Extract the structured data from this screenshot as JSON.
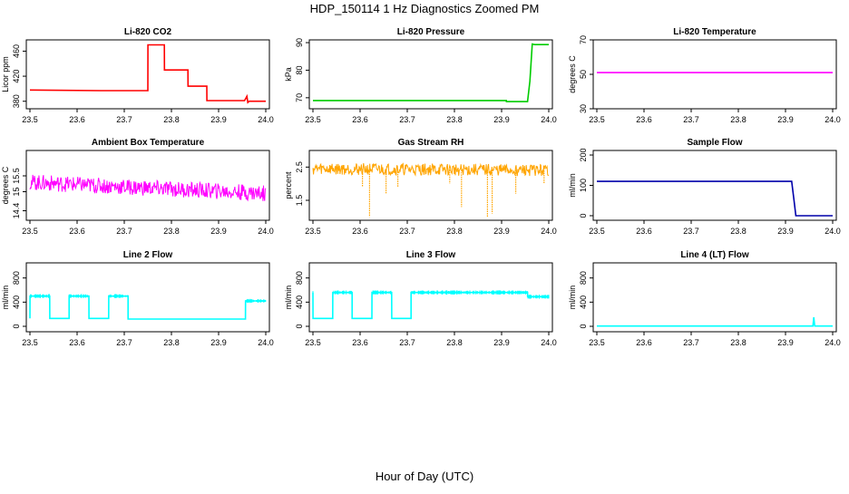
{
  "title": "HDP_150114  1 Hz Diagnostics Zoomed PM",
  "xlabel": "Hour of Day (UTC)",
  "chart_data": [
    {
      "type": "line",
      "title": "Li-820 CO2",
      "ylabel": "Licor ppm",
      "color": "#ff0000",
      "xlim": [
        23.5,
        24.0
      ],
      "ylim": [
        368,
        478
      ],
      "xticks": [
        23.5,
        23.6,
        23.7,
        23.8,
        23.9,
        24.0
      ],
      "yticks": [
        380,
        420,
        460
      ],
      "series": [
        {
          "x": [
            23.5,
            23.65,
            23.75,
            23.7501,
            23.785,
            23.7851,
            23.835,
            23.8351,
            23.875,
            23.8751,
            23.955,
            23.96,
            23.962,
            23.965,
            24.0
          ],
          "y": [
            398,
            397,
            397,
            470,
            470,
            430,
            430,
            404,
            404,
            381,
            381,
            388,
            378,
            380,
            380
          ]
        }
      ]
    },
    {
      "type": "line",
      "title": "Li-820 Pressure",
      "ylabel": "kPa",
      "color": "#00cc00",
      "xlim": [
        23.5,
        24.0
      ],
      "ylim": [
        66,
        91
      ],
      "xticks": [
        23.5,
        23.6,
        23.7,
        23.8,
        23.9,
        24.0
      ],
      "yticks": [
        70,
        80,
        90
      ],
      "series": [
        {
          "x": [
            23.5,
            23.91,
            23.9101,
            23.955,
            23.96,
            23.965,
            23.97,
            24.0
          ],
          "y": [
            69,
            69,
            68.6,
            68.6,
            76,
            89.5,
            89.3,
            89.3
          ]
        }
      ]
    },
    {
      "type": "line",
      "title": "Li-820 Temperature",
      "ylabel": "degrees C",
      "color": "#ff00ff",
      "xlim": [
        23.5,
        24.0
      ],
      "ylim": [
        30,
        70
      ],
      "xticks": [
        23.5,
        23.6,
        23.7,
        23.8,
        23.9,
        24.0
      ],
      "yticks": [
        30,
        50,
        70
      ],
      "series": [
        {
          "x": [
            23.5,
            24.0
          ],
          "y": [
            51,
            51
          ]
        }
      ]
    },
    {
      "type": "line",
      "title": "Ambient Box Temperature",
      "ylabel": "degrees C",
      "color": "#ff00ff",
      "xlim": [
        23.5,
        24.0
      ],
      "ylim": [
        14.1,
        16.3
      ],
      "xticks": [
        23.5,
        23.6,
        23.7,
        23.8,
        23.9,
        24.0
      ],
      "yticks": [
        14.4,
        15.0,
        15.5
      ],
      "noise": {
        "x": [
          23.5,
          23.7,
          23.85,
          24.0
        ],
        "mid": [
          15.3,
          15.15,
          15.05,
          14.95
        ],
        "amp": 0.25
      }
    },
    {
      "type": "line",
      "title": "Gas Stream RH",
      "ylabel": "percent",
      "color": "#ffa500",
      "xlim": [
        23.5,
        24.0
      ],
      "ylim": [
        0.9,
        3.0
      ],
      "xticks": [
        23.5,
        23.6,
        23.7,
        23.8,
        23.9,
        24.0
      ],
      "yticks": [
        1.5,
        2.5
      ],
      "noise": {
        "x": [
          23.5,
          24.0
        ],
        "mid": [
          2.45,
          2.4
        ],
        "amp": 0.18
      },
      "dips": [
        [
          23.62,
          1.0
        ],
        [
          23.605,
          1.9
        ],
        [
          23.655,
          1.7
        ],
        [
          23.68,
          1.9
        ],
        [
          23.79,
          2.0
        ],
        [
          23.815,
          1.3
        ],
        [
          23.87,
          1.0
        ],
        [
          23.88,
          1.1
        ],
        [
          23.93,
          1.7
        ],
        [
          23.99,
          2.0
        ]
      ]
    },
    {
      "type": "line",
      "title": "Sample Flow",
      "ylabel": "ml/min",
      "color": "#0000aa",
      "xlim": [
        23.5,
        24.0
      ],
      "ylim": [
        -15,
        215
      ],
      "xticks": [
        23.5,
        23.6,
        23.7,
        23.8,
        23.9,
        24.0
      ],
      "yticks": [
        0,
        100,
        200
      ],
      "series": [
        {
          "x": [
            23.5,
            23.913,
            23.918,
            23.922,
            24.0
          ],
          "y": [
            113,
            113,
            50,
            0,
            0
          ]
        }
      ]
    },
    {
      "type": "line",
      "title": "Line 2 Flow",
      "ylabel": "ml/min",
      "color": "#00ffff",
      "xlim": [
        23.5,
        24.0
      ],
      "ylim": [
        -90,
        1050
      ],
      "xticks": [
        23.5,
        23.6,
        23.7,
        23.8,
        23.9,
        24.0
      ],
      "yticks": [
        0,
        400,
        800
      ],
      "series": [
        {
          "x": [
            23.5,
            23.5001,
            23.542,
            23.5421,
            23.583,
            23.5831,
            23.625,
            23.6251,
            23.667,
            23.6671,
            23.708,
            23.7081,
            23.957,
            23.9571,
            24.0
          ],
          "y": [
            130,
            500,
            500,
            130,
            130,
            500,
            500,
            130,
            130,
            500,
            500,
            120,
            120,
            420,
            420
          ]
        }
      ]
    },
    {
      "type": "line",
      "title": "Line 3 Flow",
      "ylabel": "ml/min",
      "color": "#00ffff",
      "xlim": [
        23.5,
        24.0
      ],
      "ylim": [
        -90,
        1050
      ],
      "xticks": [
        23.5,
        23.6,
        23.7,
        23.8,
        23.9,
        24.0
      ],
      "yticks": [
        0,
        400,
        800
      ],
      "series": [
        {
          "x": [
            23.5,
            23.5001,
            23.542,
            23.5421,
            23.583,
            23.5831,
            23.625,
            23.6251,
            23.667,
            23.6671,
            23.708,
            23.7081,
            23.955,
            23.9551,
            24.0
          ],
          "y": [
            560,
            130,
            130,
            560,
            560,
            130,
            130,
            560,
            560,
            130,
            130,
            560,
            560,
            490,
            490
          ]
        }
      ]
    },
    {
      "type": "line",
      "title": "Line 4 (LT) Flow",
      "ylabel": "ml/min",
      "color": "#00ffff",
      "xlim": [
        23.5,
        24.0
      ],
      "ylim": [
        -90,
        1050
      ],
      "xticks": [
        23.5,
        23.6,
        23.7,
        23.8,
        23.9,
        24.0
      ],
      "yticks": [
        0,
        400,
        800
      ],
      "series": [
        {
          "x": [
            23.5,
            23.958,
            23.96,
            23.962,
            23.964,
            24.0
          ],
          "y": [
            5,
            5,
            150,
            5,
            5,
            5
          ]
        }
      ]
    }
  ]
}
